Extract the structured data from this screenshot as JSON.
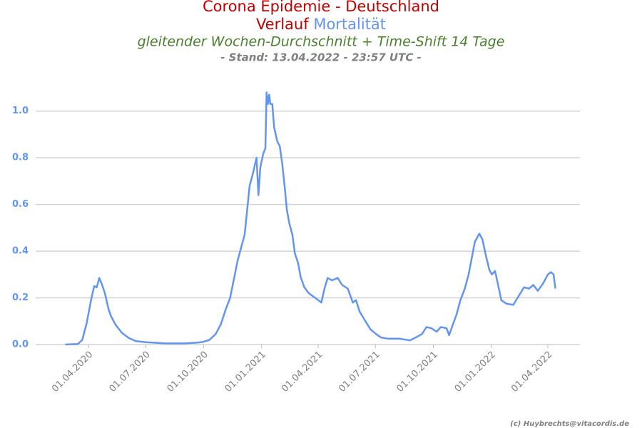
{
  "chart_data": {
    "type": "line",
    "title": "Corona Epidemie - Deutschland",
    "title_prefix": "Verlauf",
    "subtitle": "gleitender Wochen-Durchschnitt + Time-Shift 14 Tage",
    "note": "- Stand: 13.04.2022 - 23:57 UTC -",
    "credit": "(c) Huybrechts@vitacordis.de",
    "grid": true,
    "xlim": [
      "2020-01-08",
      "2022-05-22"
    ],
    "ylim": [
      0,
      1.1
    ],
    "yticks": [
      {
        "value": 0,
        "label": "0.0"
      },
      {
        "value": 0.2,
        "label": "0.2"
      },
      {
        "value": 0.4,
        "label": "0.4"
      },
      {
        "value": 0.6,
        "label": "0.6"
      },
      {
        "value": 0.8,
        "label": "0.8"
      },
      {
        "value": 1.0,
        "label": "1.0"
      }
    ],
    "xticks": [
      {
        "value": "2020-04-01",
        "label": "01.04.2020"
      },
      {
        "value": "2020-07-01",
        "label": "01.07.2020"
      },
      {
        "value": "2020-10-01",
        "label": "01.10.2020"
      },
      {
        "value": "2021-01-01",
        "label": "01.01.2021"
      },
      {
        "value": "2021-04-01",
        "label": "01.04.2021"
      },
      {
        "value": "2021-07-01",
        "label": "01.07.2021"
      },
      {
        "value": "2021-10-01",
        "label": "01.10.2021"
      },
      {
        "value": "2022-01-01",
        "label": "01.01.2022"
      },
      {
        "value": "2022-04-01",
        "label": "01.04.2022"
      }
    ],
    "x": [
      "2020-02-24",
      "2020-03-15",
      "2020-03-22",
      "2020-03-29",
      "2020-04-05",
      "2020-04-10",
      "2020-04-14",
      "2020-04-18",
      "2020-04-22",
      "2020-04-27",
      "2020-05-03",
      "2020-05-07",
      "2020-05-14",
      "2020-05-24",
      "2020-06-04",
      "2020-06-15",
      "2020-07-01",
      "2020-08-01",
      "2020-09-01",
      "2020-09-20",
      "2020-10-01",
      "2020-10-10",
      "2020-10-20",
      "2020-10-28",
      "2020-11-05",
      "2020-11-12",
      "2020-11-18",
      "2020-11-24",
      "2020-11-30",
      "2020-12-05",
      "2020-12-13",
      "2020-12-18",
      "2020-12-24",
      "2020-12-27",
      "2020-12-30",
      "2021-01-04",
      "2021-01-07",
      "2021-01-09",
      "2021-01-11",
      "2021-01-13",
      "2021-01-15",
      "2021-01-18",
      "2021-01-21",
      "2021-01-26",
      "2021-01-30",
      "2021-02-03",
      "2021-02-07",
      "2021-02-10",
      "2021-02-14",
      "2021-02-19",
      "2021-02-23",
      "2021-02-28",
      "2021-03-04",
      "2021-03-10",
      "2021-03-17",
      "2021-04-01",
      "2021-04-06",
      "2021-04-11",
      "2021-04-16",
      "2021-04-23",
      "2021-05-02",
      "2021-05-09",
      "2021-05-18",
      "2021-05-26",
      "2021-05-31",
      "2021-06-06",
      "2021-06-14",
      "2021-06-23",
      "2021-07-02",
      "2021-07-10",
      "2021-07-21",
      "2021-08-08",
      "2021-08-25",
      "2021-09-05",
      "2021-09-13",
      "2021-09-20",
      "2021-09-28",
      "2021-10-06",
      "2021-10-13",
      "2021-10-22",
      "2021-10-26",
      "2021-11-01",
      "2021-11-07",
      "2021-11-13",
      "2021-11-20",
      "2021-11-26",
      "2021-12-01",
      "2021-12-06",
      "2021-12-13",
      "2021-12-18",
      "2021-12-24",
      "2021-12-29",
      "2022-01-02",
      "2022-01-07",
      "2022-01-12",
      "2022-01-17",
      "2022-01-25",
      "2022-02-05",
      "2022-02-13",
      "2022-02-22",
      "2022-03-02",
      "2022-03-09",
      "2022-03-16",
      "2022-03-24",
      "2022-04-01",
      "2022-04-06",
      "2022-04-10",
      "2022-04-13"
    ],
    "series": [
      {
        "name": "Mortalität",
        "color": "#6495ed",
        "values": [
          0,
          0.002,
          0.02,
          0.09,
          0.19,
          0.25,
          0.245,
          0.285,
          0.26,
          0.22,
          0.15,
          0.12,
          0.085,
          0.05,
          0.028,
          0.015,
          0.01,
          0.005,
          0.005,
          0.008,
          0.012,
          0.02,
          0.045,
          0.085,
          0.15,
          0.2,
          0.28,
          0.36,
          0.42,
          0.47,
          0.68,
          0.73,
          0.8,
          0.64,
          0.76,
          0.82,
          0.84,
          1.08,
          1.03,
          1.07,
          1.03,
          1.03,
          0.93,
          0.87,
          0.85,
          0.77,
          0.67,
          0.58,
          0.52,
          0.47,
          0.39,
          0.35,
          0.29,
          0.245,
          0.22,
          0.19,
          0.18,
          0.24,
          0.285,
          0.275,
          0.285,
          0.255,
          0.24,
          0.18,
          0.19,
          0.14,
          0.105,
          0.065,
          0.045,
          0.03,
          0.025,
          0.025,
          0.018,
          0.033,
          0.045,
          0.075,
          0.07,
          0.055,
          0.075,
          0.07,
          0.04,
          0.085,
          0.13,
          0.19,
          0.24,
          0.3,
          0.37,
          0.44,
          0.475,
          0.45,
          0.375,
          0.32,
          0.3,
          0.315,
          0.255,
          0.19,
          0.175,
          0.17,
          0.205,
          0.245,
          0.24,
          0.255,
          0.23,
          0.26,
          0.3,
          0.31,
          0.3,
          0.24
        ]
      }
    ]
  }
}
